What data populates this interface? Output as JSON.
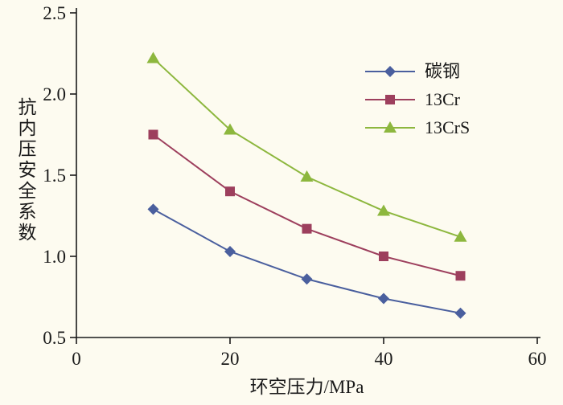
{
  "chart_data": {
    "type": "line",
    "x": [
      10,
      20,
      30,
      40,
      50
    ],
    "series": [
      {
        "name": "碳钢",
        "values": [
          1.29,
          1.03,
          0.86,
          0.74,
          0.65
        ],
        "color": "#4A5F9E",
        "marker": "diamond"
      },
      {
        "name": "13Cr",
        "values": [
          1.75,
          1.4,
          1.17,
          1.0,
          0.88
        ],
        "color": "#9D3F5D",
        "marker": "square"
      },
      {
        "name": "13CrS",
        "values": [
          2.22,
          1.78,
          1.49,
          1.28,
          1.12
        ],
        "color": "#8DB73E",
        "marker": "triangle"
      }
    ],
    "title": "",
    "xlabel": "环空压力/MPa",
    "ylabel": "抗内压安全系数",
    "xlim": [
      0,
      60
    ],
    "ylim": [
      0.5,
      2.5
    ],
    "xticks": [
      0,
      20,
      40,
      60
    ],
    "yticks": [
      0.5,
      1.0,
      1.5,
      2.0,
      2.5
    ],
    "ytick_labels": [
      "0.5",
      "1.0",
      "1.5",
      "2.0",
      "2.5"
    ],
    "grid": false,
    "legend_position": "upper-right",
    "background_color": "#FDFBF0",
    "axis_color": "#1a1a1a"
  }
}
